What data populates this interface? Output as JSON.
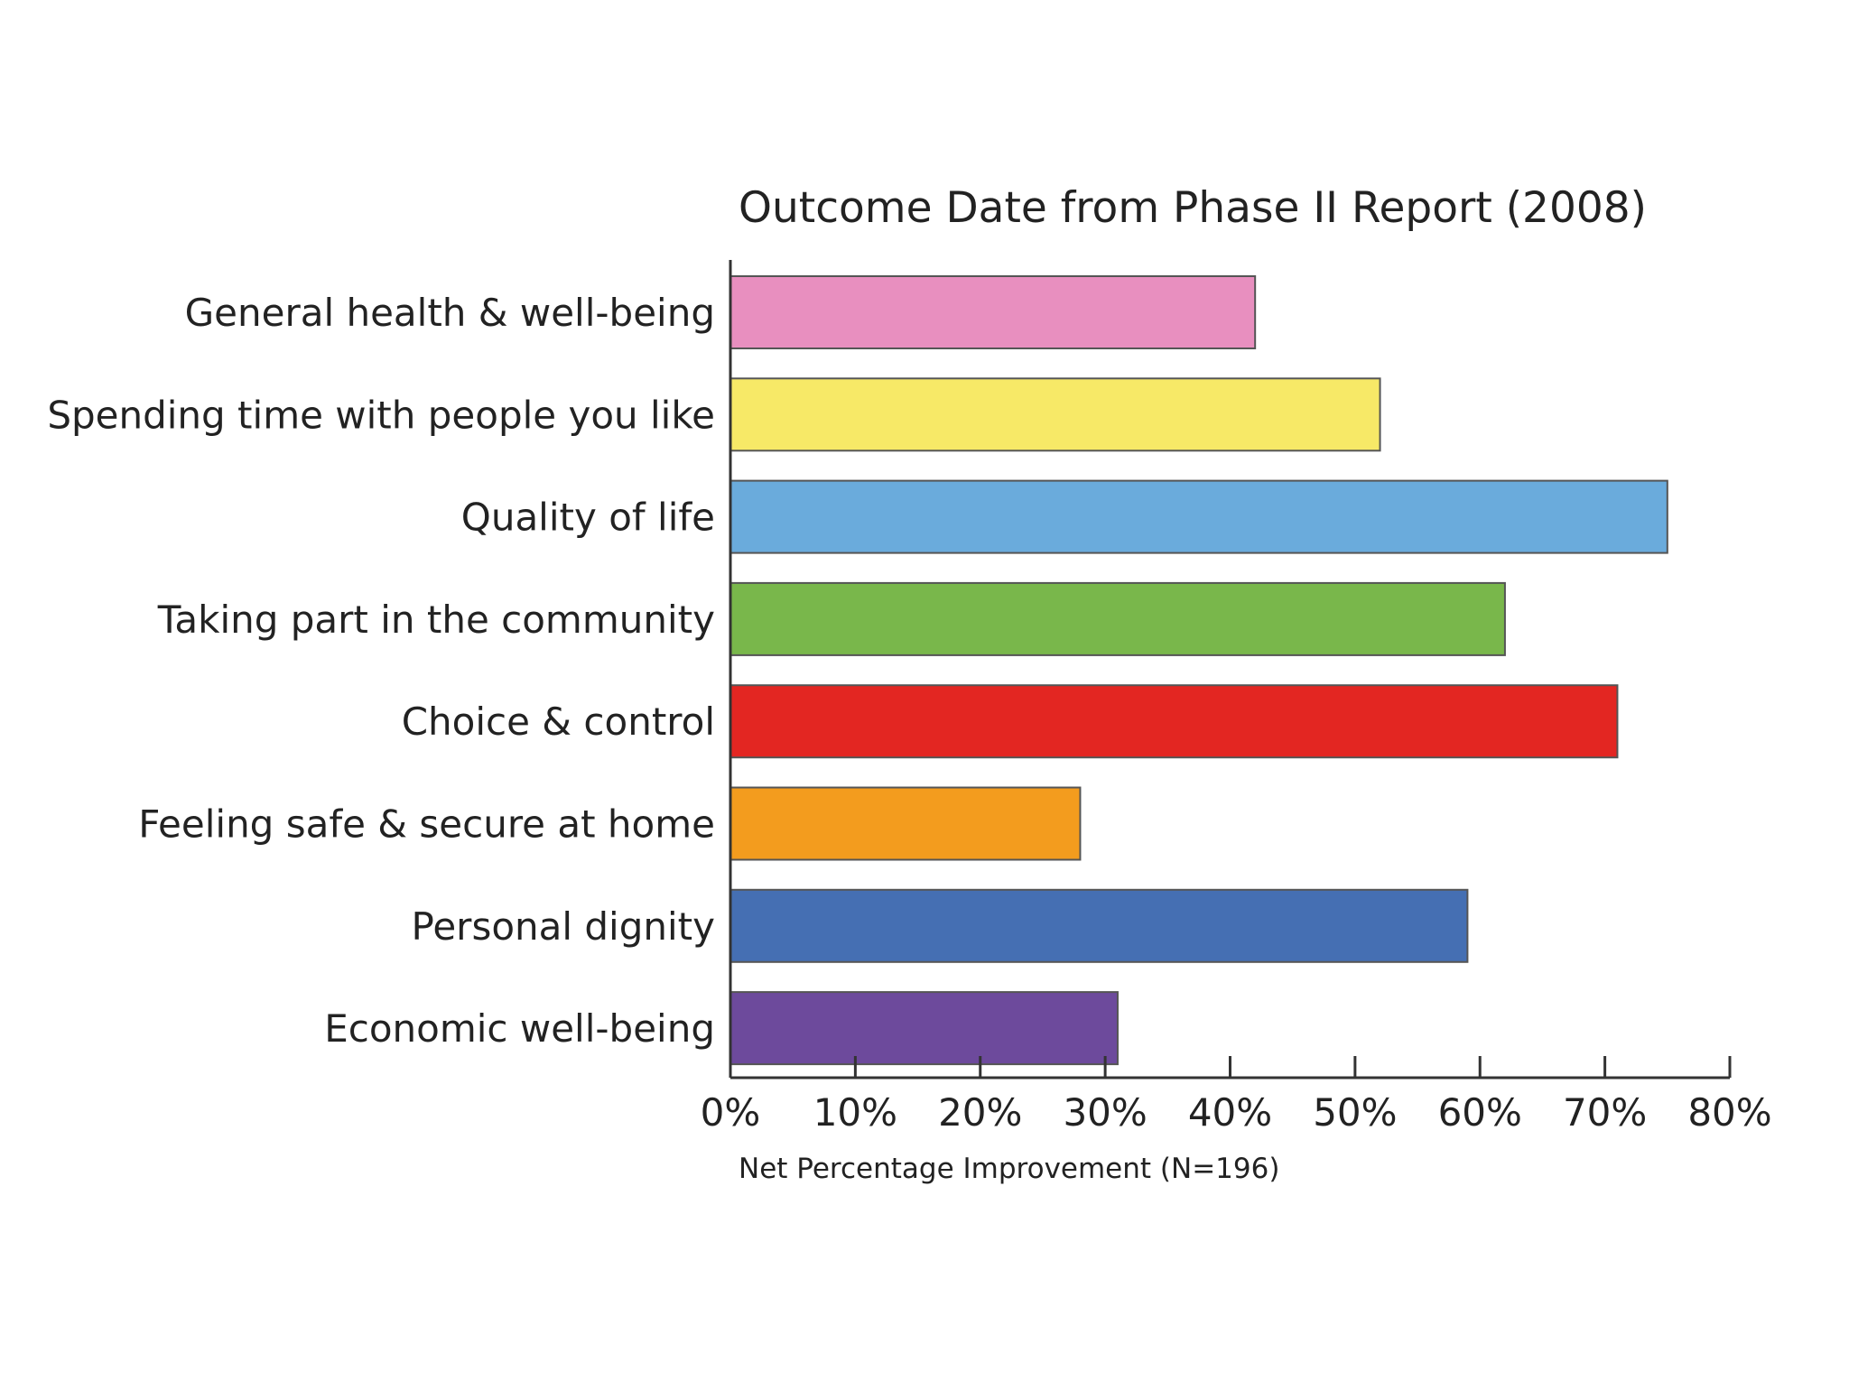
{
  "chart_data": {
    "type": "bar",
    "orientation": "horizontal",
    "title": "Outcome Date from Phase II Report (2008)",
    "xlabel": "Net Percentage Improvement (N=196)",
    "ylabel": "",
    "xlim": [
      0,
      80
    ],
    "x_ticks": [
      "0%",
      "10%",
      "20%",
      "30%",
      "40%",
      "50%",
      "60%",
      "70%",
      "80%"
    ],
    "grid": false,
    "legend": "none",
    "categories": [
      "General health & well-being",
      "Spending time with people you like",
      "Quality of life",
      "Taking part in the community",
      "Choice & control",
      "Feeling safe & secure at home",
      "Personal dignity",
      "Economic well-being"
    ],
    "values": [
      42,
      52,
      75,
      62,
      71,
      28,
      59,
      31
    ],
    "colors": [
      "#e88fbf",
      "#f7e967",
      "#6aabdc",
      "#79b74b",
      "#e32622",
      "#f39c1e",
      "#456fb3",
      "#6d4a9c"
    ]
  }
}
